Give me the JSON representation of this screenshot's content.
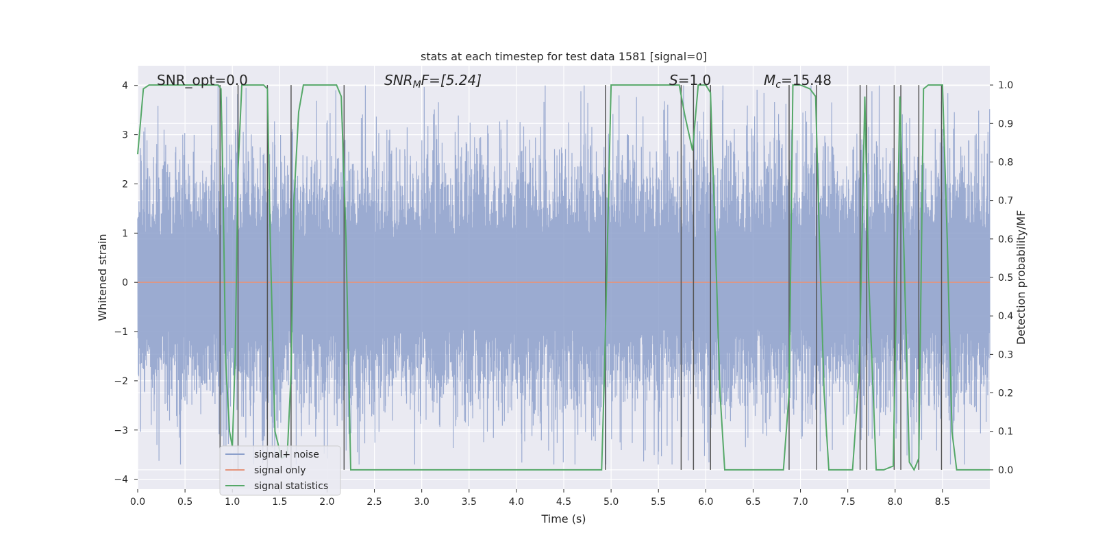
{
  "chart_data": {
    "type": "line",
    "title": "stats at each timestep for test data 1581 [signal=0]",
    "xlabel": "Time (s)",
    "ylabel_left": "Whitened strain",
    "ylabel_right": "Detection probability/MF",
    "xlim": [
      0.0,
      9.0
    ],
    "ylim_left": [
      -4.2,
      4.4
    ],
    "ylim_right": [
      -0.05,
      1.05
    ],
    "xticks": [
      "0.0",
      "0.5",
      "1.0",
      "1.5",
      "2.0",
      "2.5",
      "3.0",
      "3.5",
      "4.0",
      "4.5",
      "5.0",
      "5.5",
      "6.0",
      "6.5",
      "7.0",
      "7.5",
      "8.0",
      "8.5"
    ],
    "yticks_left": [
      "4",
      "3",
      "2",
      "1",
      "0",
      "−1",
      "−2",
      "−3",
      "−4"
    ],
    "yticks_right": [
      "1.0",
      "0.9",
      "0.8",
      "0.7",
      "0.6",
      "0.5",
      "0.4",
      "0.3",
      "0.2",
      "0.1",
      "0.0"
    ],
    "grid": true,
    "legend_position": "lower-left",
    "annotations": {
      "snr_opt": "SNR_opt=0.0",
      "snr_mf_main": "SNR",
      "snr_mf_sub": "M",
      "snr_mf_rest": "F=[5.24]",
      "s_main": "S",
      "s_rest": "=1.0",
      "mc_main": "M",
      "mc_sub": "c",
      "mc_rest": "=15.48"
    },
    "series": [
      {
        "name": "signal+ noise",
        "color": "#8da0cb",
        "noise_envelope": {
          "typical_amplitude": 1.7,
          "peak_amplitude": 4.0
        }
      },
      {
        "name": "signal only",
        "color": "#e5937a",
        "constant_value": 0.0
      },
      {
        "name": "signal statistics",
        "color": "#55a868",
        "x": [
          0.0,
          0.06,
          0.12,
          0.85,
          0.88,
          0.9,
          0.93,
          0.97,
          1.0,
          1.03,
          1.06,
          1.1,
          1.13,
          1.33,
          1.37,
          1.4,
          1.45,
          1.52,
          1.58,
          1.62,
          1.65,
          1.7,
          1.75,
          2.1,
          2.15,
          2.2,
          2.25,
          2.3,
          2.35,
          4.9,
          4.93,
          5.0,
          5.72,
          5.78,
          5.86,
          5.92,
          6.0,
          6.05,
          6.1,
          6.15,
          6.2,
          6.82,
          6.88,
          6.92,
          7.0,
          7.1,
          7.16,
          7.2,
          7.25,
          7.3,
          7.55,
          7.62,
          7.68,
          7.72,
          7.8,
          7.88,
          7.98,
          8.05,
          8.1,
          8.15,
          8.2,
          8.25,
          8.3,
          8.35,
          8.5,
          8.55,
          8.6,
          8.65,
          8.7,
          9.0
        ],
        "y": [
          0.82,
          0.99,
          1.0,
          1.0,
          0.99,
          0.75,
          0.28,
          0.1,
          0.06,
          0.3,
          0.78,
          1.0,
          1.0,
          1.0,
          0.99,
          0.6,
          0.1,
          0.03,
          0.04,
          0.25,
          0.7,
          0.93,
          1.0,
          1.0,
          0.97,
          0.6,
          0.0,
          0.0,
          0.0,
          0.0,
          0.25,
          1.0,
          1.0,
          0.92,
          0.83,
          1.0,
          1.0,
          0.98,
          0.6,
          0.2,
          0.0,
          0.0,
          0.2,
          1.0,
          1.0,
          0.99,
          0.97,
          0.6,
          0.2,
          0.0,
          0.0,
          0.25,
          0.97,
          0.5,
          0.0,
          0.0,
          0.01,
          0.97,
          0.5,
          0.02,
          0.0,
          0.03,
          0.99,
          1.0,
          1.0,
          0.6,
          0.1,
          0.0,
          0.0,
          0.0
        ]
      }
    ],
    "vertical_markers_x": [
      0.87,
      1.06,
      1.37,
      1.62,
      2.18,
      4.94,
      5.74,
      5.87,
      6.05,
      6.88,
      7.17,
      7.63,
      7.7,
      7.99,
      8.06,
      8.25,
      8.49
    ]
  }
}
